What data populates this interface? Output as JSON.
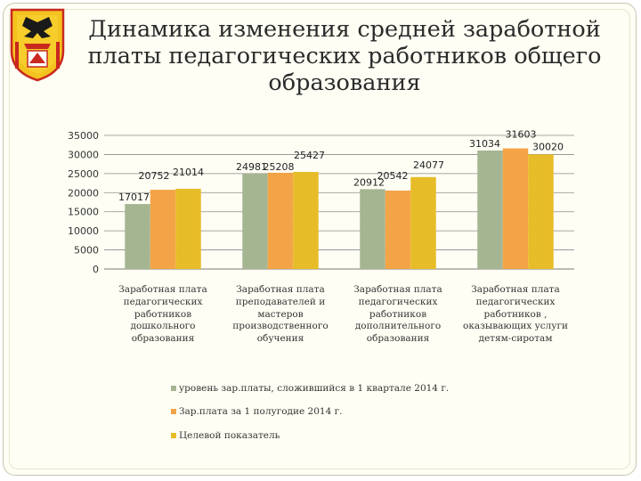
{
  "title": "Динамика изменения средней заработной платы педагогических работников общего образования",
  "colors": {
    "series1": "#a5b592",
    "series2": "#f3a447",
    "series3": "#e7bc29",
    "grid": "#8a8a8a"
  },
  "chart_data": {
    "type": "bar",
    "title": "Динамика изменения средней заработной платы педагогических работников общего образования",
    "categories": [
      "Заработная плата педагогических работников дошкольного образования",
      "Заработная плата преподавателей и мастеров производственного обучения",
      "Заработная плата педагогических работников дополнительного образования",
      "Заработная плата педагогических работников , оказывающих услуги детям-сиротам"
    ],
    "series": [
      {
        "name": "уровень зар.платы, сложившийся в 1 квартале 2014 г.",
        "values": [
          17017,
          24981,
          20912,
          31034
        ]
      },
      {
        "name": "Зар.плата за 1 полугодие 2014 г.",
        "values": [
          20752,
          25208,
          20542,
          31603
        ]
      },
      {
        "name": "Целевой показатель",
        "values": [
          21014,
          25427,
          24077,
          30020
        ]
      }
    ],
    "ylim": [
      0,
      35000
    ],
    "yticks": [
      "35000",
      "30000",
      "25000",
      "20000",
      "15000",
      "10000",
      "5000",
      "0"
    ],
    "legend_position": "bottom",
    "xlabel": "",
    "ylabel": ""
  }
}
